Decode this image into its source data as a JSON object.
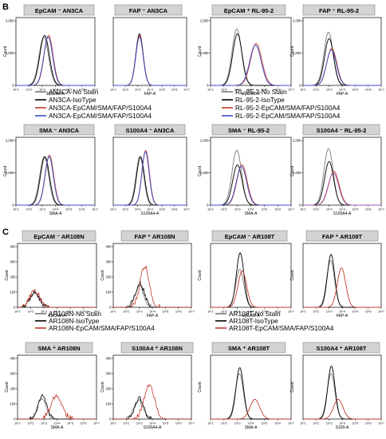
{
  "panel_letters": [
    "B",
    "C"
  ],
  "tick_labels": {
    "x": [
      "10^1",
      "10^2",
      "10^3",
      "10^4",
      "10^5",
      "10^6",
      "10^7"
    ],
    "y_count_1000": [
      "0",
      "1,000",
      "2,000"
    ],
    "y_count_small": [
      "0",
      "100",
      "200",
      "300",
      "400"
    ]
  },
  "colors": {
    "no_stain": "#7a7a7a",
    "isotype": "#000000",
    "stain_red": "#c0392b",
    "stain_blue": "#3b4bc8",
    "stain_purple": "#9b59b6"
  },
  "legends": [
    {
      "items": [
        {
          "label": "AN3CA-No Stain",
          "color": "#7a7a7a"
        },
        {
          "label": "AN3CA-IsoType",
          "color": "#000000"
        },
        {
          "label": "AN3CA-EpCAM/SMA/FAP/S100A4",
          "color": "#c0392b"
        },
        {
          "label": "AN3CA-EpCAM/SMA/FAP/S100A4",
          "color": "#3b4bc8"
        }
      ]
    },
    {
      "items": [
        {
          "label": "RL-95-2-No Stain",
          "color": "#7a7a7a"
        },
        {
          "label": "RL-95-2-IsoType",
          "color": "#000000"
        },
        {
          "label": "RL-95-2-EpCAM/SMA/FAP/S100A4",
          "color": "#c0392b"
        },
        {
          "label": "RL-95-2-EpCAM/SMA/FAP/S100A4",
          "color": "#3b4bc8"
        }
      ]
    },
    {
      "items": [
        {
          "label": "AR108N-No Stain",
          "color": "#7a7a7a"
        },
        {
          "label": "AR108N-IsoType",
          "color": "#000000"
        },
        {
          "label": "AR108N-EpCAM/SMA/FAP/S100A4",
          "color": "#c0392b"
        }
      ]
    },
    {
      "items": [
        {
          "label": "AR108T-No Stain",
          "color": "#7a7a7a"
        },
        {
          "label": "AR108T-IsoType",
          "color": "#000000"
        },
        {
          "label": "AR108T-EpCAM/SMA/FAP/S100A4",
          "color": "#c0392b"
        }
      ]
    }
  ],
  "chart_data": [
    {
      "type": "area",
      "title": "EpCAM ⁻ AN3CA",
      "xlabel": "EpCAM-A",
      "ylabel": "Count",
      "xscale": "log",
      "xlim": [
        10,
        10000000
      ],
      "ylim": [
        0,
        2000
      ],
      "yticks": "y_count_1000",
      "series": [
        {
          "name": "AN3CA-No Stain",
          "color": "#7a7a7a",
          "peak_x": 1300,
          "peak_count": 1500,
          "width": 0.36
        },
        {
          "name": "AN3CA-IsoType",
          "color": "#000000",
          "peak_x": 1500,
          "peak_count": 1550,
          "width": 0.36
        },
        {
          "name": "AN3CA-EpCAM/SMA/FAP/S100A4",
          "color": "#c0392b",
          "peak_x": 3000,
          "peak_count": 1550,
          "width": 0.34
        },
        {
          "name": "AN3CA-EpCAM/SMA/FAP/S100A4",
          "color": "#3b4bc8",
          "peak_x": 2800,
          "peak_count": 1500,
          "width": 0.34
        }
      ]
    },
    {
      "type": "area",
      "title": "FAP ⁻ AN3CA",
      "xlabel": "FAP-A",
      "ylabel": "",
      "xscale": "log",
      "xlim": [
        10,
        10000000
      ],
      "ylim": [
        0,
        2000
      ],
      "yticks": "none",
      "series": [
        {
          "name": "AN3CA-No Stain",
          "color": "#7a7a7a",
          "peak_x": 1400,
          "peak_count": 1550,
          "width": 0.3
        },
        {
          "name": "AN3CA-IsoType",
          "color": "#000000",
          "peak_x": 1400,
          "peak_count": 1600,
          "width": 0.3
        },
        {
          "name": "AN3CA-EpCAM/SMA/FAP/S100A4",
          "color": "#c0392b",
          "peak_x": 1400,
          "peak_count": 1550,
          "width": 0.3
        },
        {
          "name": "AN3CA-EpCAM/SMA/FAP/S100A4",
          "color": "#3b4bc8",
          "peak_x": 1400,
          "peak_count": 1500,
          "width": 0.3
        }
      ]
    },
    {
      "type": "area",
      "title": "EpCAM ⁺ RL-95-2",
      "xlabel": "EpCAM-A",
      "ylabel": "Count",
      "xscale": "log",
      "xlim": [
        10,
        10000000
      ],
      "ylim": [
        0,
        2000
      ],
      "yticks": "y_count_1000",
      "series": [
        {
          "name": "RL-95-2-No Stain",
          "color": "#7a7a7a",
          "peak_x": 900,
          "peak_count": 1750,
          "width": 0.35
        },
        {
          "name": "RL-95-2-IsoType",
          "color": "#000000",
          "peak_x": 1000,
          "peak_count": 1600,
          "width": 0.35
        },
        {
          "name": "RL-95-2-EpCAM/SMA/FAP/S100A4",
          "color": "#c0392b",
          "peak_x": 25000,
          "peak_count": 1300,
          "width": 0.42
        },
        {
          "name": "RL-95-2-EpCAM/SMA/FAP/S100A4",
          "color": "#3b4bc8",
          "peak_x": 22000,
          "peak_count": 1250,
          "width": 0.42
        }
      ]
    },
    {
      "type": "area",
      "title": "FAP ⁻ RL-95-2",
      "xlabel": "FAP-A",
      "ylabel": "Count",
      "xscale": "log",
      "xlim": [
        10,
        10000000
      ],
      "ylim": [
        0,
        2000
      ],
      "yticks": "y_count_1000",
      "series": [
        {
          "name": "RL-95-2-No Stain",
          "color": "#7a7a7a",
          "peak_x": 900,
          "peak_count": 1650,
          "width": 0.35
        },
        {
          "name": "RL-95-2-IsoType",
          "color": "#000000",
          "peak_x": 1000,
          "peak_count": 1450,
          "width": 0.35
        },
        {
          "name": "RL-95-2-EpCAM/SMA/FAP/S100A4",
          "color": "#c0392b",
          "peak_x": 1600,
          "peak_count": 1150,
          "width": 0.38
        },
        {
          "name": "RL-95-2-EpCAM/SMA/FAP/S100A4",
          "color": "#3b4bc8",
          "peak_x": 1500,
          "peak_count": 1100,
          "width": 0.38
        }
      ]
    },
    {
      "type": "area",
      "title": "SMA ⁻ AN3CA",
      "xlabel": "SMA-A",
      "ylabel": "Count",
      "xscale": "log",
      "xlim": [
        10,
        10000000
      ],
      "ylim": [
        0,
        2000
      ],
      "yticks": "y_count_1000",
      "series": [
        {
          "name": "AN3CA-No Stain",
          "color": "#7a7a7a",
          "peak_x": 1400,
          "peak_count": 1500,
          "width": 0.34
        },
        {
          "name": "AN3CA-IsoType",
          "color": "#000000",
          "peak_x": 1600,
          "peak_count": 1500,
          "width": 0.34
        },
        {
          "name": "AN3CA-EpCAM/SMA/FAP/S100A4",
          "color": "#c0392b",
          "peak_x": 3500,
          "peak_count": 1550,
          "width": 0.32
        },
        {
          "name": "AN3CA-EpCAM/SMA/FAP/S100A4",
          "color": "#3b4bc8",
          "peak_x": 3300,
          "peak_count": 1500,
          "width": 0.32
        }
      ]
    },
    {
      "type": "area",
      "title": "S100A4 ⁻ AN3CA",
      "xlabel": "S100A4-A",
      "ylabel": "",
      "xscale": "log",
      "xlim": [
        10,
        10000000
      ],
      "ylim": [
        0,
        2000
      ],
      "yticks": "none",
      "series": [
        {
          "name": "AN3CA-No Stain",
          "color": "#7a7a7a",
          "peak_x": 1500,
          "peak_count": 1500,
          "width": 0.32
        },
        {
          "name": "AN3CA-IsoType",
          "color": "#000000",
          "peak_x": 1700,
          "peak_count": 1500,
          "width": 0.32
        },
        {
          "name": "AN3CA-EpCAM/SMA/FAP/S100A4",
          "color": "#c0392b",
          "peak_x": 4500,
          "peak_count": 1700,
          "width": 0.3
        },
        {
          "name": "AN3CA-EpCAM/SMA/FAP/S100A4",
          "color": "#3b4bc8",
          "peak_x": 4300,
          "peak_count": 1650,
          "width": 0.3
        }
      ]
    },
    {
      "type": "area",
      "title": "SMA ⁻ RL-95-2",
      "xlabel": "SMA-A",
      "ylabel": "Count",
      "xscale": "log",
      "xlim": [
        10,
        10000000
      ],
      "ylim": [
        0,
        2000
      ],
      "yticks": "y_count_1000",
      "series": [
        {
          "name": "RL-95-2-No Stain",
          "color": "#7a7a7a",
          "peak_x": 900,
          "peak_count": 1700,
          "width": 0.35
        },
        {
          "name": "RL-95-2-IsoType",
          "color": "#000000",
          "peak_x": 1000,
          "peak_count": 1250,
          "width": 0.35
        },
        {
          "name": "RL-95-2-EpCAM/SMA/FAP/S100A4",
          "color": "#c0392b",
          "peak_x": 2200,
          "peak_count": 1250,
          "width": 0.38
        },
        {
          "name": "RL-95-2-EpCAM/SMA/FAP/S100A4",
          "color": "#3b4bc8",
          "peak_x": 2000,
          "peak_count": 1200,
          "width": 0.38
        }
      ]
    },
    {
      "type": "area",
      "title": "S100A4 ⁻ RL-95-2",
      "xlabel": "S100A4-A",
      "ylabel": "Count",
      "xscale": "log",
      "xlim": [
        10,
        10000000
      ],
      "ylim": [
        0,
        2000
      ],
      "yticks": "y_count_1000",
      "series": [
        {
          "name": "RL-95-2-No Stain",
          "color": "#7a7a7a",
          "peak_x": 900,
          "peak_count": 1750,
          "width": 0.35
        },
        {
          "name": "RL-95-2-IsoType",
          "color": "#000000",
          "peak_x": 1000,
          "peak_count": 1350,
          "width": 0.35
        },
        {
          "name": "RL-95-2-EpCAM/SMA/FAP/S100A4",
          "color": "#c0392b",
          "peak_x": 2300,
          "peak_count": 1050,
          "width": 0.4
        },
        {
          "name": "RL-95-2-EpCAM/SMA/FAP/S100A4",
          "color": "#9b59b6",
          "peak_x": 2100,
          "peak_count": 1000,
          "width": 0.4
        }
      ]
    },
    {
      "type": "area",
      "title": "EpCAM ⁻ AR108N",
      "xlabel": "EpCAM-A",
      "ylabel": "Count",
      "xscale": "log",
      "xlim": [
        10,
        10000000
      ],
      "ylim": [
        0,
        400
      ],
      "yticks": "y_count_small",
      "series": [
        {
          "name": "AR108N-No Stain",
          "color": "#7a7a7a",
          "peak_x": 220,
          "peak_count": 100,
          "width": 0.36,
          "noise": 14
        },
        {
          "name": "AR108N-IsoType",
          "color": "#000000",
          "peak_x": 200,
          "peak_count": 95,
          "width": 0.36,
          "noise": 14
        },
        {
          "name": "AR108N-EpCAM/SMA/FAP/S100A4",
          "color": "#c0392b",
          "peak_x": 200,
          "peak_count": 110,
          "width": 0.38,
          "noise": 16
        }
      ]
    },
    {
      "type": "area",
      "title": "FAP ⁺ AR108N",
      "xlabel": "FAP-A",
      "ylabel": "Count",
      "xscale": "log",
      "xlim": [
        10,
        10000000
      ],
      "ylim": [
        0,
        400
      ],
      "yticks": "y_count_small",
      "series": [
        {
          "name": "AR108N-No Stain",
          "color": "#7a7a7a",
          "peak_x": 1000,
          "peak_count": 145,
          "width": 0.34,
          "noise": 18
        },
        {
          "name": "AR108N-IsoType",
          "color": "#000000",
          "peak_x": 1100,
          "peak_count": 160,
          "width": 0.34,
          "noise": 18
        },
        {
          "name": "AR108N-EpCAM/SMA/FAP/S100A4",
          "color": "#c0392b",
          "peak_x": 2600,
          "peak_count": 270,
          "width": 0.36,
          "noise": 20
        }
      ]
    },
    {
      "type": "area",
      "title": "EpCAM ⁻ AR108T",
      "xlabel": "EpCAM-A",
      "ylabel": "Count",
      "xscale": "log",
      "xlim": [
        10,
        10000000
      ],
      "ylim": [
        0,
        2000
      ],
      "yticks": "none",
      "series": [
        {
          "name": "AR108T-No Stain",
          "color": "#7a7a7a",
          "peak_x": 1500,
          "peak_count": 1250,
          "width": 0.3
        },
        {
          "name": "AR108T-IsoType",
          "color": "#000000",
          "peak_x": 1600,
          "peak_count": 1800,
          "width": 0.28
        },
        {
          "name": "AR108T-EpCAM/SMA/FAP/S100A4",
          "color": "#c0392b",
          "peak_x": 2300,
          "peak_count": 1200,
          "width": 0.32
        }
      ]
    },
    {
      "type": "area",
      "title": "FAP ⁺ AR108T",
      "xlabel": "FAP-A",
      "ylabel": "Count",
      "xscale": "log",
      "xlim": [
        10,
        10000000
      ],
      "ylim": [
        0,
        2000
      ],
      "yticks": "none",
      "series": [
        {
          "name": "AR108T-No Stain",
          "color": "#7a7a7a",
          "peak_x": 1300,
          "peak_count": 1550,
          "width": 0.3
        },
        {
          "name": "AR108T-IsoType",
          "color": "#000000",
          "peak_x": 1400,
          "peak_count": 1750,
          "width": 0.28
        },
        {
          "name": "AR108T-EpCAM/SMA/FAP/S100A4",
          "color": "#c0392b",
          "peak_x": 9000,
          "peak_count": 1300,
          "width": 0.32
        }
      ]
    },
    {
      "type": "area",
      "title": "SMA ⁺ AR108N",
      "xlabel": "SMA-A",
      "ylabel": "Count",
      "xscale": "log",
      "xlim": [
        10,
        10000000
      ],
      "ylim": [
        0,
        400
      ],
      "yticks": "y_count_small",
      "series": [
        {
          "name": "AR108N-No Stain",
          "color": "#7a7a7a",
          "peak_x": 700,
          "peak_count": 140,
          "width": 0.32,
          "noise": 14
        },
        {
          "name": "AR108N-IsoType",
          "color": "#000000",
          "peak_x": 800,
          "peak_count": 150,
          "width": 0.32,
          "noise": 14
        },
        {
          "name": "AR108N-EpCAM/SMA/FAP/S100A4",
          "color": "#c0392b",
          "peak_x": 9000,
          "peak_count": 160,
          "width": 0.42,
          "noise": 18
        }
      ]
    },
    {
      "type": "area",
      "title": "S100A4 ⁺ AR108N",
      "xlabel": "S100A4-A",
      "ylabel": "Count",
      "xscale": "log",
      "xlim": [
        10,
        10000000
      ],
      "ylim": [
        0,
        400
      ],
      "yticks": "y_count_small",
      "series": [
        {
          "name": "AR108N-No Stain",
          "color": "#7a7a7a",
          "peak_x": 900,
          "peak_count": 130,
          "width": 0.32,
          "noise": 14
        },
        {
          "name": "AR108N-IsoType",
          "color": "#000000",
          "peak_x": 1000,
          "peak_count": 140,
          "width": 0.32,
          "noise": 14
        },
        {
          "name": "AR108N-EpCAM/SMA/FAP/S100A4",
          "color": "#c0392b",
          "peak_x": 6000,
          "peak_count": 230,
          "width": 0.4,
          "noise": 18
        }
      ]
    },
    {
      "type": "area",
      "title": "SMA ⁺ AR108T",
      "xlabel": "SMA-A",
      "ylabel": "Count",
      "xscale": "log",
      "xlim": [
        10,
        10000000
      ],
      "ylim": [
        0,
        2000
      ],
      "yticks": "none",
      "series": [
        {
          "name": "AR108T-No Stain",
          "color": "#7a7a7a",
          "peak_x": 1400,
          "peak_count": 1500,
          "width": 0.3
        },
        {
          "name": "AR108T-IsoType",
          "color": "#000000",
          "peak_x": 1500,
          "peak_count": 1700,
          "width": 0.28
        },
        {
          "name": "AR108T-EpCAM/SMA/FAP/S100A4",
          "color": "#c0392b",
          "peak_x": 20000,
          "peak_count": 650,
          "width": 0.36
        }
      ]
    },
    {
      "type": "area",
      "title": "S100A4 ⁺ AR108T",
      "xlabel": "S100-A",
      "ylabel": "Count",
      "xscale": "log",
      "xlim": [
        10,
        10000000
      ],
      "ylim": [
        0,
        2000
      ],
      "yticks": "none",
      "series": [
        {
          "name": "AR108T-No Stain",
          "color": "#7a7a7a",
          "peak_x": 1400,
          "peak_count": 1500,
          "width": 0.3
        },
        {
          "name": "AR108T-IsoType",
          "color": "#000000",
          "peak_x": 1500,
          "peak_count": 1750,
          "width": 0.28
        },
        {
          "name": "AR108T-EpCAM/SMA/FAP/S100A4",
          "color": "#c0392b",
          "peak_x": 5000,
          "peak_count": 650,
          "width": 0.36
        }
      ]
    }
  ]
}
